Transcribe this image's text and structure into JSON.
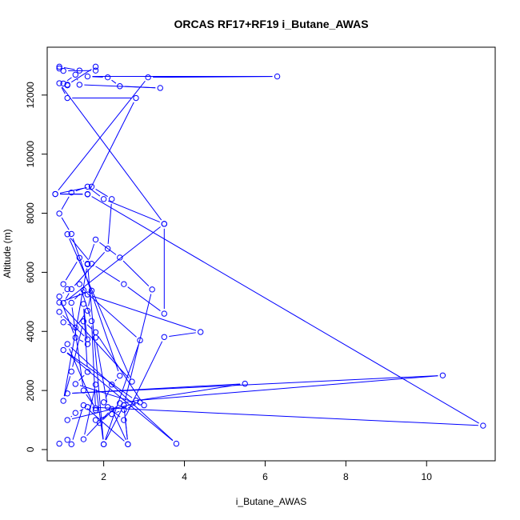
{
  "chart_data": {
    "type": "line",
    "title": "ORCAS RF17+RF19 i_Butane_AWAS",
    "xlabel": "i_Butane_AWAS",
    "ylabel": "Altitude (m)",
    "xlim": [
      0.6,
      11.7
    ],
    "ylim": [
      -380,
      13620
    ],
    "xticks": [
      2,
      4,
      6,
      8,
      10
    ],
    "yticks": [
      0,
      2000,
      4000,
      6000,
      8000,
      10000,
      12000
    ],
    "color": "#0000ff",
    "marker": "open-circle",
    "series": [
      {
        "x": [
          0.9,
          1.1,
          1.2,
          1.5,
          2.6,
          2.5,
          2.6,
          2.2,
          1.5,
          1.8,
          2.0,
          2.5,
          3.2,
          2.4,
          1.8,
          1.6,
          1.0,
          1.2,
          1.5,
          1.8,
          3.0,
          1.3,
          1.6,
          1.5,
          1.6,
          1.3,
          0.9,
          1.1,
          1.0,
          1.4,
          1.6,
          2.0,
          2.9,
          1.5,
          1.2,
          1.5,
          1.8,
          2.0,
          2.2,
          2.4,
          1.2,
          0.9,
          1.2,
          1.6,
          2.0,
          3.5,
          3.5,
          2.5,
          1.7,
          1.1,
          2.7,
          0.9,
          1.7,
          1.6,
          1.3,
          1.0,
          0.9,
          1.6,
          1.8,
          2.1,
          2.5,
          3.5,
          4.4,
          1.6,
          1.4,
          1.7,
          1.8,
          1.1,
          3.8,
          1.0,
          2.8,
          10.4,
          1.1,
          5.5,
          2.4,
          1.9,
          1.8,
          2.2,
          2.5,
          2.9,
          1.1,
          1.3,
          1.6,
          11.4,
          1.6,
          0.8,
          1.7,
          2.2,
          2.1,
          1.2,
          1.0,
          3.5,
          0.9,
          1.1,
          2.8,
          1.6,
          0.8,
          3.1,
          6.3,
          1.6,
          2.1,
          2.4,
          3.4,
          1.4,
          1.3,
          1.0,
          1.1,
          1.1,
          1.8,
          1.8,
          1.0,
          0.9,
          0.9,
          1.4
        ],
        "y": [
          200,
          330,
          180,
          1500,
          180,
          1500,
          180,
          1370,
          350,
          2200,
          180,
          1500,
          5420,
          6500,
          7110,
          6290,
          1650,
          2640,
          4340,
          3970,
          1500,
          2220,
          2630,
          4930,
          3570,
          3790,
          5180,
          5430,
          5600,
          6490,
          6270,
          180,
          3700,
          5400,
          4970,
          2000,
          1400,
          1600,
          2200,
          2500,
          7300,
          7990,
          8700,
          8900,
          8480,
          7640,
          4600,
          5600,
          6290,
          7290,
          2300,
          4980,
          5380,
          4700,
          4130,
          4310,
          4660,
          3730,
          3790,
          1440,
          1000,
          3810,
          3980,
          5250,
          5600,
          4350,
          1330,
          3570,
          200,
          3370,
          1660,
          2510,
          1900,
          2230,
          1570,
          900,
          1000,
          1200,
          1350,
          1600,
          1000,
          1240,
          1440,
          810,
          8650,
          8650,
          8900,
          8480,
          6800,
          5430,
          4960,
          7640,
          12400,
          11900,
          11900,
          8640,
          8650,
          12600,
          12630,
          12630,
          12600,
          12300,
          12240,
          12350,
          12690,
          12390,
          12330,
          12350,
          12960,
          12830,
          12820,
          12900,
          12960,
          12830
        ]
      }
    ]
  }
}
